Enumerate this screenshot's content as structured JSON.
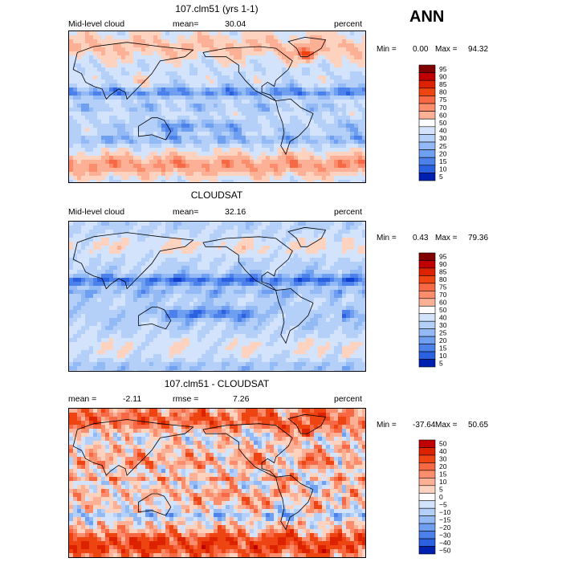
{
  "season": "ANN",
  "colors": {
    "pos": [
      "#800000",
      "#c00000",
      "#dd2200",
      "#ee4411",
      "#f76845",
      "#fb8d6c",
      "#fcb096",
      "#fdd3c0"
    ],
    "neutral": "#ffffff",
    "neg": [
      "#d3e3fb",
      "#b4d0f9",
      "#93baf5",
      "#6f9ff0",
      "#4c80ea",
      "#2b60e0",
      "#0e3fd0",
      "#0020b0",
      "#000c8a"
    ],
    "coast": "#000000"
  },
  "chart_data": [
    {
      "type": "heatmap",
      "title": "107.clm51 (yrs 1-1)",
      "variable": "Mid-level cloud",
      "mean_label": "mean=",
      "mean": "30.04",
      "units": "percent",
      "min_label": "Min =",
      "min": "0.00",
      "max_label": "Max =",
      "max": "94.32",
      "field": "model",
      "colorbar_levels": [
        "95",
        "90",
        "85",
        "80",
        "75",
        "70",
        "60",
        "50",
        "40",
        "30",
        "25",
        "20",
        "15",
        "10",
        "5"
      ]
    },
    {
      "type": "heatmap",
      "title": "CLOUDSAT",
      "variable": "Mid-level cloud",
      "mean_label": "mean=",
      "mean": "32.16",
      "units": "percent",
      "min_label": "Min =",
      "min": "0.43",
      "max_label": "Max =",
      "max": "79.36",
      "field": "obs",
      "colorbar_levels": [
        "95",
        "90",
        "85",
        "80",
        "75",
        "70",
        "60",
        "50",
        "40",
        "30",
        "25",
        "20",
        "15",
        "10",
        "5"
      ]
    },
    {
      "type": "heatmap",
      "title": "107.clm51 - CLOUDSAT",
      "mean_label": "mean =",
      "mean": "-2.11",
      "rmse_label": "rmse =",
      "rmse": "7.26",
      "units": "percent",
      "min_label": "Min =",
      "min": "-37.64",
      "max_label": "Max =",
      "max": "50.65",
      "field": "diff",
      "colorbar_levels": [
        "50",
        "40",
        "30",
        "20",
        "15",
        "10",
        "5",
        "0",
        "−5",
        "−10",
        "−15",
        "−20",
        "−30",
        "−40",
        "−50"
      ]
    }
  ]
}
